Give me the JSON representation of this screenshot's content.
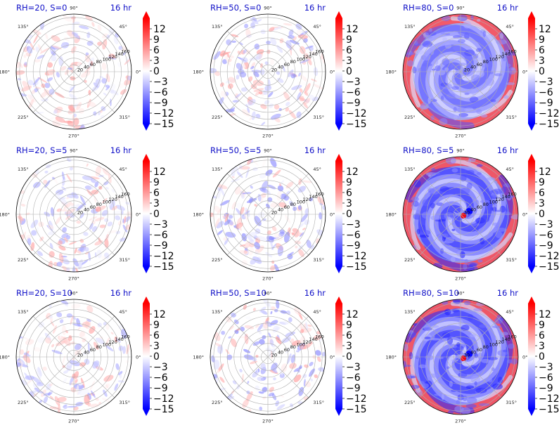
{
  "chart_data": {
    "type": "heatmap",
    "projection": "polar",
    "layout": "3x3 grid",
    "time_label": "16 hr",
    "colormap": "bwr",
    "value_range": [
      -15,
      15
    ],
    "colorbar_extend": "both",
    "colorbar_ticks": [
      "12",
      "9",
      "6",
      "3",
      "0",
      "−3",
      "−6",
      "−9",
      "−12",
      "−15"
    ],
    "radial_ticks": [
      "20",
      "40",
      "60",
      "80",
      "100",
      "120",
      "140",
      "160"
    ],
    "angular_ticks": [
      "90°",
      "45°",
      "0°",
      "315°",
      "270°",
      "225°",
      "180°",
      "135°"
    ],
    "grid": true,
    "panels": [
      {
        "title": "RH=20, S=0",
        "time": "16 hr",
        "rh": 20,
        "s": 0,
        "amplitude_range": [
          -6,
          6
        ],
        "pattern": "scattered small-scale positive and negative cells"
      },
      {
        "title": "RH=50, S=0",
        "time": "16 hr",
        "rh": 50,
        "s": 0,
        "amplitude_range": [
          -7,
          6
        ],
        "pattern": "scattered cells, slightly negative"
      },
      {
        "title": "RH=80, S=0",
        "time": "16 hr",
        "rh": 80,
        "s": 0,
        "amplitude_range": [
          -12,
          15
        ],
        "pattern": "negative spiral interior, strongly positive rim"
      },
      {
        "title": "RH=20, S=5",
        "time": "16 hr",
        "rh": 20,
        "s": 5,
        "amplitude_range": [
          -6,
          6
        ],
        "pattern": "scattered small-scale positive and negative cells"
      },
      {
        "title": "RH=50, S=5",
        "time": "16 hr",
        "rh": 50,
        "s": 5,
        "amplitude_range": [
          -8,
          6
        ],
        "pattern": "scattered cells, slightly negative"
      },
      {
        "title": "RH=80, S=5",
        "time": "16 hr",
        "rh": 80,
        "s": 5,
        "amplitude_range": [
          -15,
          15
        ],
        "pattern": "negative spiral interior, positive rim, strong core dipole"
      },
      {
        "title": "RH=20, S=10",
        "time": "16 hr",
        "rh": 20,
        "s": 10,
        "amplitude_range": [
          -6,
          6
        ],
        "pattern": "scattered small-scale positive and negative cells"
      },
      {
        "title": "RH=50, S=10",
        "time": "16 hr",
        "rh": 50,
        "s": 10,
        "amplitude_range": [
          -8,
          7
        ],
        "pattern": "scattered cells, slightly negative"
      },
      {
        "title": "RH=80, S=10",
        "time": "16 hr",
        "rh": 80,
        "s": 10,
        "amplitude_range": [
          -15,
          15
        ],
        "pattern": "negative spiral interior, positive rim, strong core dipole"
      }
    ]
  }
}
